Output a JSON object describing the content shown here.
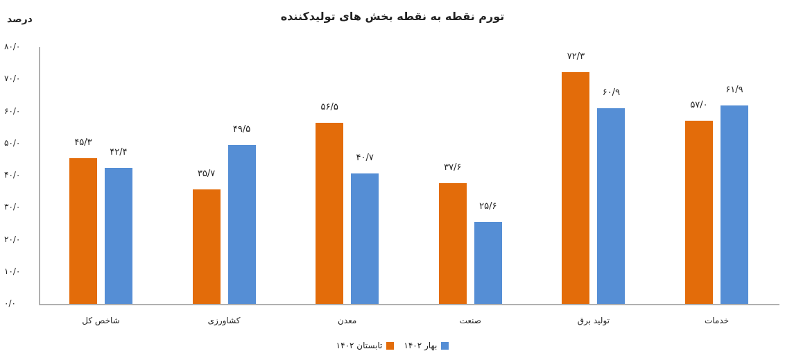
{
  "chart_data": {
    "type": "bar",
    "title": "تورم نقطه به نقطه بخش های تولیدکننده",
    "ylabel": "درصد",
    "xlabel": "",
    "ylim": [
      0,
      80
    ],
    "yticks": [
      "۰/۰",
      "۱۰/۰",
      "۲۰/۰",
      "۳۰/۰",
      "۴۰/۰",
      "۵۰/۰",
      "۶۰/۰",
      "۷۰/۰",
      "۸۰/۰"
    ],
    "ytick_values": [
      0,
      10,
      20,
      30,
      40,
      50,
      60,
      70,
      80
    ],
    "grid": false,
    "legend_position": "bottom",
    "categories": [
      "شاخص کل",
      "کشاورزی",
      "معدن",
      "صنعت",
      "تولید برق",
      "خدمات"
    ],
    "series": [
      {
        "name": "تابستان ۱۴۰۲",
        "color": "#e36c0a",
        "values": [
          45.3,
          35.7,
          56.5,
          37.6,
          72.3,
          57.0
        ],
        "labels": [
          "۴۵/۳",
          "۳۵/۷",
          "۵۶/۵",
          "۳۷/۶",
          "۷۲/۳",
          "۵۷/۰"
        ]
      },
      {
        "name": "بهار ۱۴۰۲",
        "color": "#558ed5",
        "values": [
          42.4,
          49.5,
          40.7,
          25.6,
          60.9,
          61.9
        ],
        "labels": [
          "۴۲/۴",
          "۴۹/۵",
          "۴۰/۷",
          "۲۵/۶",
          "۶۰/۹",
          "۶۱/۹"
        ]
      }
    ]
  }
}
